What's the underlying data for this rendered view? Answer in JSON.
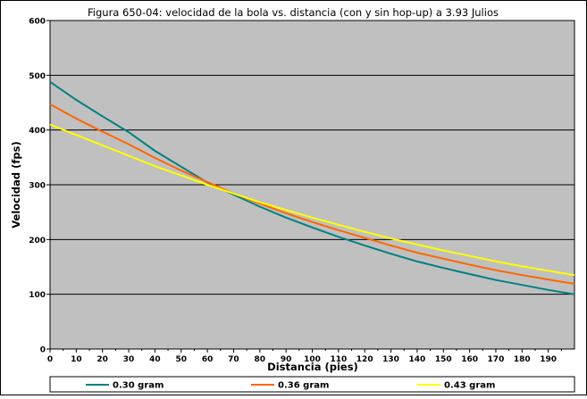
{
  "chart_data": {
    "type": "line",
    "title": "Figura 650-04: velocidad de la bola vs. distancia (con y sin hop-up) a 3.93 Julios",
    "xlabel": "Distancia (pies)",
    "ylabel": "Velocidad (fps)",
    "xlim": [
      0,
      200
    ],
    "ylim": [
      0,
      600
    ],
    "x_ticks": [
      "0",
      "10",
      "20",
      "30",
      "40",
      "50",
      "60",
      "70",
      "80",
      "90",
      "100",
      "110",
      "120",
      "130",
      "140",
      "150",
      "160",
      "170",
      "180",
      "190"
    ],
    "y_ticks": [
      "0",
      "100",
      "200",
      "300",
      "400",
      "500",
      "600"
    ],
    "grid": "horizontal",
    "legend": "bottom",
    "plot_background": "#c0c0c0",
    "x": [
      0,
      10,
      20,
      30,
      40,
      50,
      60,
      70,
      80,
      90,
      100,
      110,
      120,
      130,
      140,
      150,
      160,
      170,
      180,
      190,
      200
    ],
    "series": [
      {
        "name": "0.30 gram",
        "color": "#008080",
        "values": [
          488,
          455,
          425,
          396,
          362,
          333,
          304,
          282,
          260,
          240,
          222,
          205,
          189,
          174,
          160,
          148,
          137,
          126,
          117,
          108,
          100
        ]
      },
      {
        "name": "0.36 gram",
        "color": "#ff6600",
        "values": [
          447,
          421,
          397,
          374,
          349,
          326,
          305,
          284,
          266,
          248,
          232,
          217,
          203,
          189,
          176,
          165,
          154,
          144,
          135,
          127,
          119
        ]
      },
      {
        "name": "0.43 gram",
        "color": "#ffff00",
        "values": [
          410,
          391,
          372,
          353,
          334,
          317,
          300,
          284,
          268,
          254,
          240,
          227,
          214,
          202,
          191,
          180,
          170,
          160,
          151,
          143,
          135
        ]
      }
    ]
  }
}
